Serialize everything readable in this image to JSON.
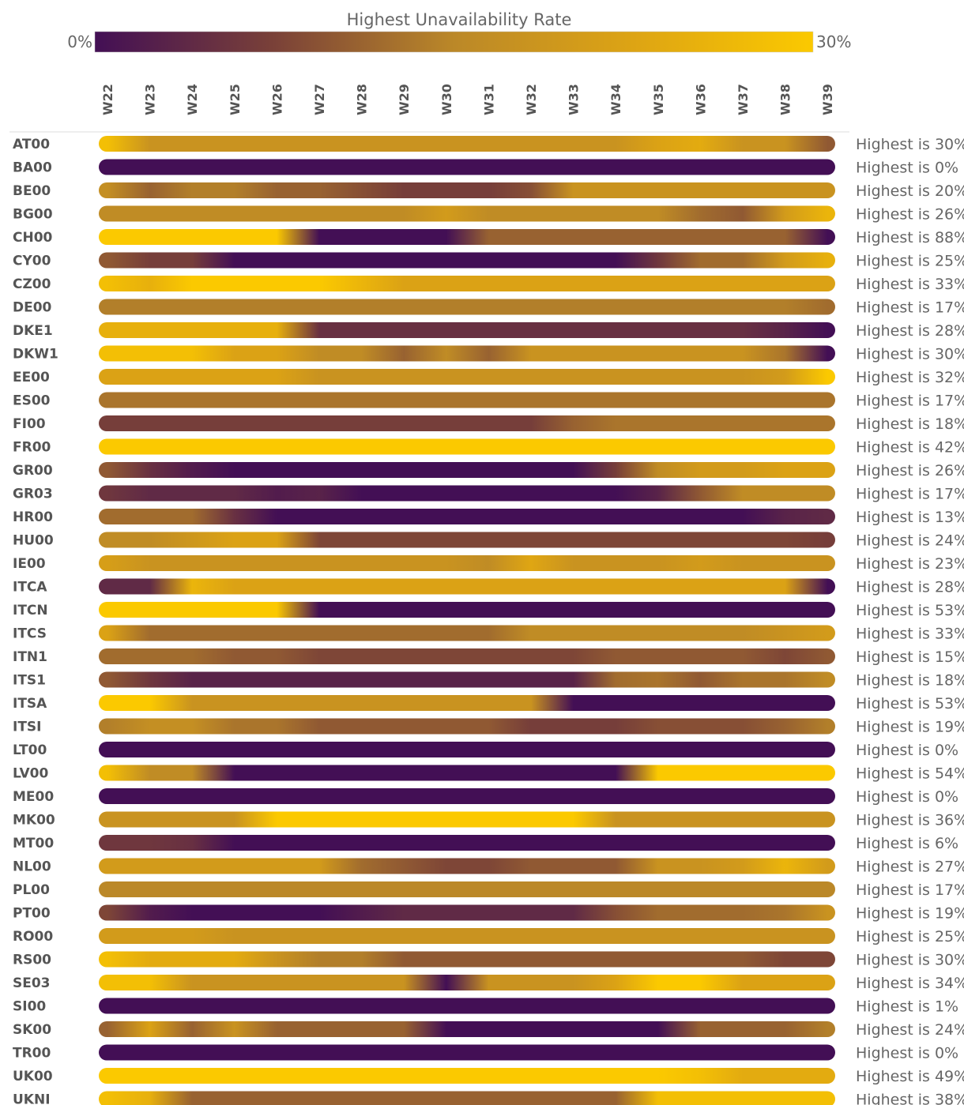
{
  "chart_data": {
    "type": "heatmap",
    "title": "Highest Unavailability Rate",
    "color_scale": {
      "min_label": "0%",
      "max_label": "30%",
      "min": 0,
      "max": 30,
      "stops": [
        "#430f55",
        "#7a4138",
        "#bb8828",
        "#dda414",
        "#fbc900"
      ]
    },
    "weeks": [
      "W22",
      "W23",
      "W24",
      "W25",
      "W26",
      "W27",
      "W28",
      "W29",
      "W30",
      "W31",
      "W32",
      "W33",
      "W34",
      "W35",
      "W36",
      "W37",
      "W38",
      "W39"
    ],
    "rows": [
      {
        "name": "AT00",
        "max_label": "Highest is 30%",
        "values": [
          28,
          18,
          18,
          18,
          18,
          18,
          18,
          18,
          18,
          18,
          18,
          18,
          18,
          22,
          24,
          18,
          18,
          10
        ]
      },
      {
        "name": "BA00",
        "max_label": "Highest is 0%",
        "values": [
          0,
          0,
          0,
          0,
          0,
          0,
          0,
          0,
          0,
          0,
          0,
          0,
          0,
          0,
          0,
          0,
          0,
          0
        ]
      },
      {
        "name": "BE00",
        "max_label": "Highest is 20%",
        "values": [
          17,
          11,
          14,
          14,
          11,
          11,
          9,
          7,
          7,
          7,
          9,
          18,
          18,
          18,
          18,
          18,
          18,
          18
        ]
      },
      {
        "name": "BG00",
        "max_label": "Highest is 26%",
        "values": [
          16,
          16,
          16,
          16,
          16,
          16,
          16,
          16,
          20,
          16,
          16,
          16,
          16,
          16,
          12,
          10,
          20,
          26
        ]
      },
      {
        "name": "CH00",
        "max_label": "Highest is 88%",
        "values": [
          30,
          30,
          30,
          30,
          30,
          0,
          0,
          0,
          0,
          11,
          11,
          11,
          11,
          11,
          11,
          11,
          11,
          0
        ]
      },
      {
        "name": "CY00",
        "max_label": "Highest is 25%",
        "values": [
          10,
          7,
          7,
          0,
          0,
          0,
          0,
          0,
          0,
          0,
          0,
          0,
          0,
          6,
          12,
          12,
          20,
          25
        ]
      },
      {
        "name": "CZ00",
        "max_label": "Highest is 33%",
        "values": [
          28,
          25,
          30,
          30,
          30,
          30,
          26,
          22,
          22,
          22,
          22,
          22,
          22,
          22,
          22,
          22,
          22,
          22
        ]
      },
      {
        "name": "DE00",
        "max_label": "Highest is 17%",
        "values": [
          14,
          14,
          14,
          14,
          14,
          14,
          14,
          14,
          14,
          14,
          14,
          14,
          14,
          14,
          14,
          14,
          14,
          12
        ]
      },
      {
        "name": "DKE1",
        "max_label": "Highest is 28%",
        "values": [
          25,
          25,
          25,
          25,
          25,
          5,
          5,
          5,
          5,
          5,
          5,
          5,
          5,
          5,
          5,
          5,
          3,
          0
        ]
      },
      {
        "name": "DKW1",
        "max_label": "Highest is 30%",
        "values": [
          28,
          28,
          28,
          22,
          22,
          16,
          16,
          11,
          16,
          11,
          18,
          18,
          18,
          18,
          18,
          18,
          13,
          0
        ]
      },
      {
        "name": "EE00",
        "max_label": "Highest is 32%",
        "values": [
          22,
          22,
          22,
          22,
          22,
          18,
          18,
          18,
          18,
          18,
          18,
          18,
          18,
          18,
          18,
          18,
          20,
          30
        ]
      },
      {
        "name": "ES00",
        "max_label": "Highest is 17%",
        "values": [
          13,
          13,
          13,
          13,
          13,
          13,
          13,
          13,
          13,
          13,
          13,
          13,
          13,
          13,
          13,
          13,
          13,
          13
        ]
      },
      {
        "name": "FI00",
        "max_label": "Highest is 18%",
        "values": [
          7,
          7,
          7,
          7,
          7,
          7,
          7,
          7,
          7,
          7,
          7,
          11,
          13,
          13,
          13,
          13,
          13,
          13
        ]
      },
      {
        "name": "FR00",
        "max_label": "Highest is 42%",
        "values": [
          30,
          30,
          30,
          30,
          30,
          30,
          30,
          30,
          30,
          30,
          30,
          30,
          30,
          30,
          30,
          30,
          30,
          30
        ]
      },
      {
        "name": "GR00",
        "max_label": "Highest is 26%",
        "values": [
          10,
          5,
          2,
          0,
          0,
          0,
          0,
          0,
          0,
          0,
          0,
          0,
          7,
          16,
          20,
          20,
          22,
          22
        ]
      },
      {
        "name": "GR03",
        "max_label": "Highest is 17%",
        "values": [
          6,
          4,
          4,
          4,
          2,
          3,
          0,
          0,
          0,
          0,
          0,
          0,
          0,
          3,
          10,
          16,
          16,
          16
        ]
      },
      {
        "name": "HR00",
        "max_label": "Highest is 13%",
        "values": [
          12,
          12,
          12,
          5,
          0,
          0,
          0,
          0,
          0,
          0,
          0,
          0,
          0,
          0,
          0,
          0,
          3,
          4
        ]
      },
      {
        "name": "HU00",
        "max_label": "Highest is 24%",
        "values": [
          16,
          16,
          19,
          22,
          22,
          8,
          8,
          8,
          8,
          8,
          8,
          8,
          8,
          8,
          8,
          8,
          8,
          7
        ]
      },
      {
        "name": "IE00",
        "max_label": "Highest is 23%",
        "values": [
          21,
          18,
          18,
          18,
          18,
          18,
          18,
          18,
          18,
          16,
          23,
          18,
          18,
          18,
          20,
          18,
          18,
          18
        ]
      },
      {
        "name": "ITCA",
        "max_label": "Highest is 28%",
        "values": [
          4,
          4,
          26,
          22,
          22,
          22,
          22,
          22,
          22,
          22,
          22,
          22,
          22,
          22,
          22,
          22,
          22,
          0
        ]
      },
      {
        "name": "ITCN",
        "max_label": "Highest is 53%",
        "values": [
          30,
          30,
          30,
          30,
          30,
          0,
          0,
          0,
          0,
          0,
          0,
          0,
          0,
          0,
          0,
          0,
          0,
          0
        ]
      },
      {
        "name": "ITCS",
        "max_label": "Highest is 33%",
        "values": [
          22,
          12,
          12,
          12,
          12,
          12,
          12,
          12,
          12,
          12,
          16,
          16,
          16,
          16,
          16,
          16,
          18,
          20
        ]
      },
      {
        "name": "ITN1",
        "max_label": "Highest is 15%",
        "values": [
          12,
          12,
          12,
          10,
          10,
          8,
          8,
          8,
          8,
          8,
          8,
          8,
          10,
          10,
          10,
          10,
          8,
          10
        ]
      },
      {
        "name": "ITS1",
        "max_label": "Highest is 18%",
        "values": [
          10,
          6,
          3,
          3,
          3,
          3,
          3,
          3,
          3,
          3,
          3,
          3,
          12,
          13,
          10,
          13,
          13,
          16
        ]
      },
      {
        "name": "ITSA",
        "max_label": "Highest is 53%",
        "values": [
          30,
          30,
          18,
          18,
          18,
          18,
          18,
          18,
          18,
          18,
          18,
          0,
          0,
          0,
          0,
          0,
          0,
          0
        ]
      },
      {
        "name": "ITSI",
        "max_label": "Highest is 19%",
        "values": [
          14,
          17,
          17,
          13,
          13,
          10,
          10,
          10,
          10,
          10,
          7,
          7,
          7,
          9,
          9,
          9,
          11,
          14
        ]
      },
      {
        "name": "LT00",
        "max_label": "Highest is 0%",
        "values": [
          0,
          0,
          0,
          0,
          0,
          0,
          0,
          0,
          0,
          0,
          0,
          0,
          0,
          0,
          0,
          0,
          0,
          0
        ]
      },
      {
        "name": "LV00",
        "max_label": "Highest is 54%",
        "values": [
          28,
          16,
          16,
          0,
          0,
          0,
          0,
          0,
          0,
          0,
          0,
          0,
          0,
          30,
          30,
          30,
          30,
          30
        ]
      },
      {
        "name": "ME00",
        "max_label": "Highest is 0%",
        "values": [
          0,
          0,
          0,
          0,
          0,
          0,
          0,
          0,
          0,
          0,
          0,
          0,
          0,
          0,
          0,
          0,
          0,
          0
        ]
      },
      {
        "name": "MK00",
        "max_label": "Highest is 36%",
        "values": [
          18,
          18,
          18,
          18,
          30,
          30,
          30,
          30,
          30,
          30,
          30,
          30,
          18,
          18,
          18,
          18,
          18,
          18
        ]
      },
      {
        "name": "MT00",
        "max_label": "Highest is 6%",
        "values": [
          6,
          6,
          5,
          0,
          0,
          0,
          0,
          0,
          0,
          0,
          0,
          0,
          0,
          0,
          0,
          0,
          0,
          0
        ]
      },
      {
        "name": "NL00",
        "max_label": "Highest is 27%",
        "values": [
          20,
          20,
          20,
          20,
          20,
          20,
          12,
          10,
          8,
          8,
          10,
          10,
          10,
          18,
          18,
          20,
          26,
          20
        ]
      },
      {
        "name": "PL00",
        "max_label": "Highest is 17%",
        "values": [
          15,
          15,
          15,
          15,
          15,
          15,
          15,
          15,
          15,
          15,
          15,
          15,
          15,
          15,
          15,
          15,
          15,
          15
        ]
      },
      {
        "name": "PT00",
        "max_label": "Highest is 19%",
        "values": [
          8,
          2,
          0,
          0,
          0,
          0,
          2,
          4,
          4,
          4,
          4,
          4,
          9,
          12,
          12,
          12,
          13,
          18
        ]
      },
      {
        "name": "RO00",
        "max_label": "Highest is 25%",
        "values": [
          20,
          20,
          20,
          18,
          18,
          18,
          18,
          18,
          18,
          18,
          18,
          18,
          18,
          18,
          18,
          18,
          18,
          18
        ]
      },
      {
        "name": "RS00",
        "max_label": "Highest is 30%",
        "values": [
          28,
          24,
          24,
          24,
          18,
          14,
          14,
          10,
          10,
          10,
          10,
          10,
          10,
          10,
          10,
          10,
          8,
          8
        ]
      },
      {
        "name": "SE03",
        "max_label": "Highest is 34%",
        "values": [
          28,
          28,
          18,
          18,
          18,
          18,
          18,
          18,
          0,
          18,
          18,
          18,
          22,
          30,
          30,
          22,
          22,
          22
        ]
      },
      {
        "name": "SI00",
        "max_label": "Highest is 1%",
        "values": [
          0,
          0,
          0,
          0,
          0,
          0,
          0,
          0,
          0,
          0,
          0,
          0,
          0,
          0,
          0,
          0,
          0,
          0
        ]
      },
      {
        "name": "SK00",
        "max_label": "Highest is 24%",
        "values": [
          11,
          22,
          11,
          18,
          11,
          11,
          11,
          11,
          0,
          0,
          0,
          0,
          0,
          0,
          11,
          11,
          11,
          14
        ]
      },
      {
        "name": "TR00",
        "max_label": "Highest is 0%",
        "values": [
          0,
          0,
          0,
          0,
          0,
          0,
          0,
          0,
          0,
          0,
          0,
          0,
          0,
          0,
          0,
          0,
          0,
          0
        ]
      },
      {
        "name": "UK00",
        "max_label": "Highest is 49%",
        "values": [
          30,
          30,
          30,
          30,
          30,
          30,
          30,
          30,
          30,
          30,
          30,
          30,
          30,
          30,
          28,
          24,
          24,
          24
        ]
      },
      {
        "name": "UKNI",
        "max_label": "Highest is 38%",
        "values": [
          28,
          25,
          11,
          11,
          11,
          11,
          11,
          11,
          11,
          11,
          11,
          11,
          11,
          28,
          28,
          28,
          28,
          28
        ]
      }
    ]
  }
}
